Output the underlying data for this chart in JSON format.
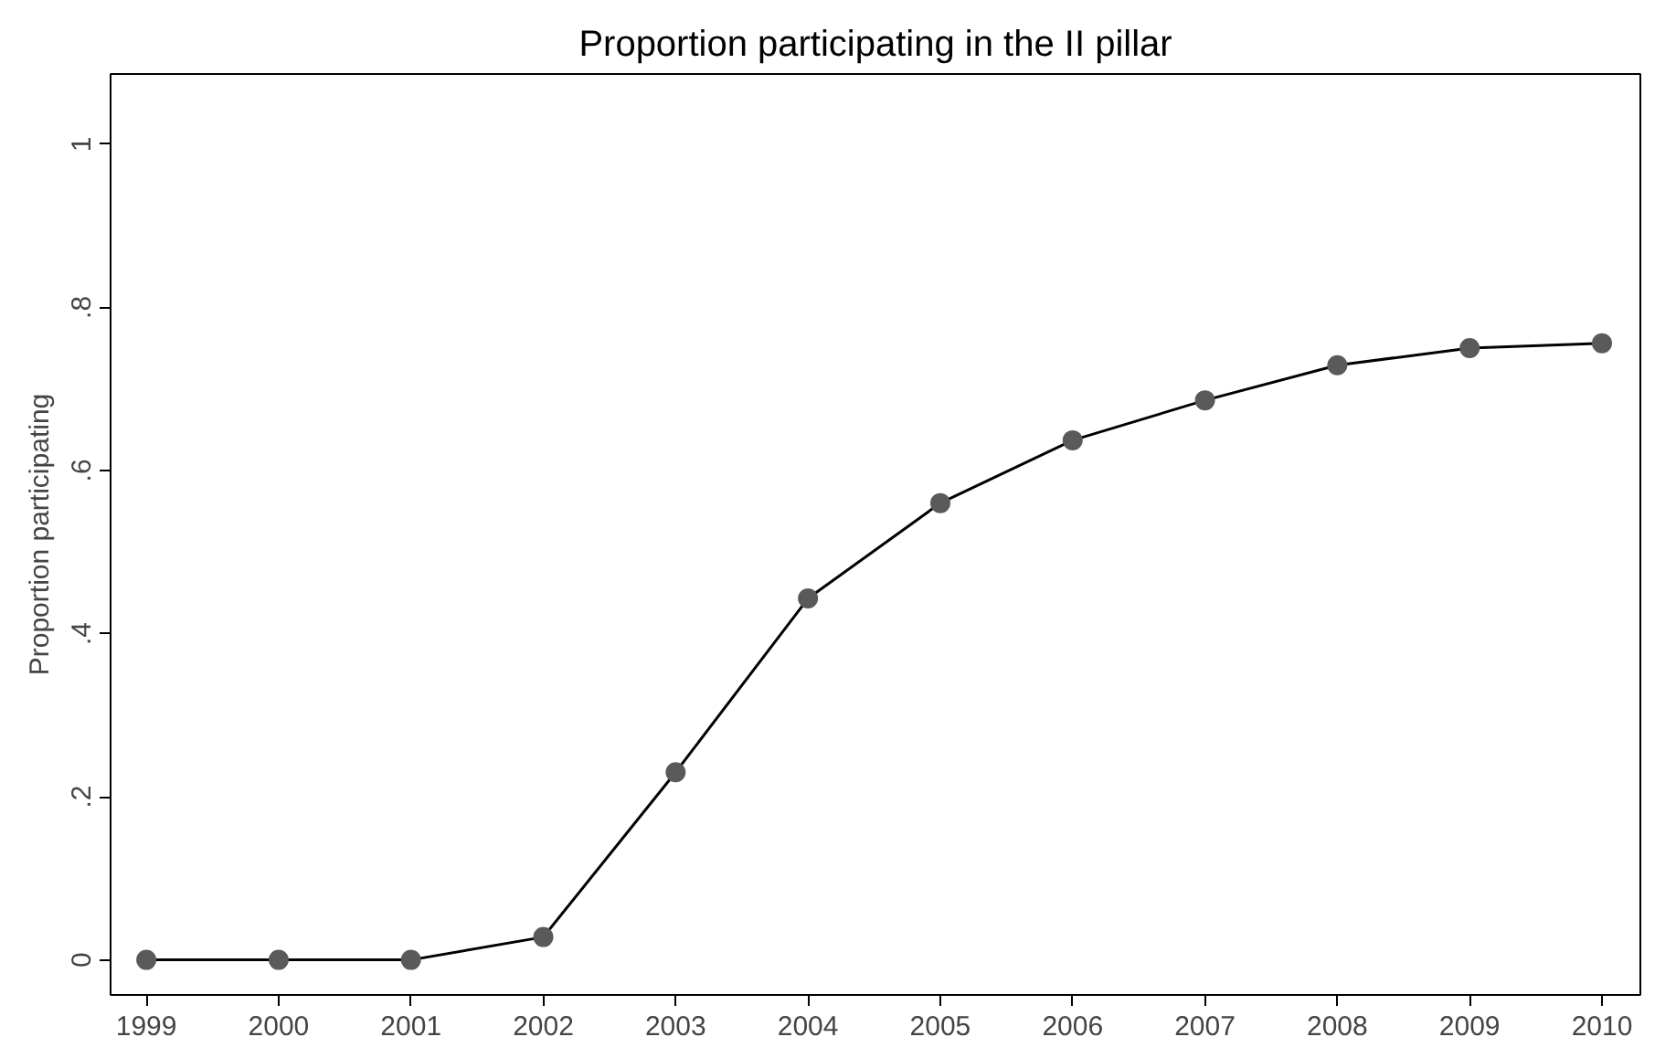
{
  "chart_data": {
    "type": "line",
    "title": "Proportion participating in the II pillar",
    "ylabel": "Proportion participating",
    "x": [
      1999,
      2000,
      2001,
      2002,
      2003,
      2004,
      2005,
      2006,
      2007,
      2008,
      2009,
      2010
    ],
    "series": [
      {
        "color": "#000000",
        "values": [
          0,
          0,
          0,
          0.028,
          0.23,
          0.443,
          0.56,
          0.637,
          0.686,
          0.729,
          0.75,
          0.756
        ]
      }
    ],
    "xlim": [
      1998.73,
      2010.29
    ],
    "ylim": [
      -0.043,
      1.086
    ],
    "xticks": [
      1999,
      2000,
      2001,
      2002,
      2003,
      2004,
      2005,
      2006,
      2007,
      2008,
      2009,
      2010
    ],
    "yticks": [
      0,
      {
        "value": 0.2,
        "label": ".2"
      },
      {
        "value": 0.4,
        "label": ".4"
      },
      {
        "value": 0.6,
        "label": ".6"
      },
      {
        "value": 0.8,
        "label": ".8"
      },
      1
    ],
    "grid": false,
    "marker": "circle",
    "line_style": "solid"
  }
}
